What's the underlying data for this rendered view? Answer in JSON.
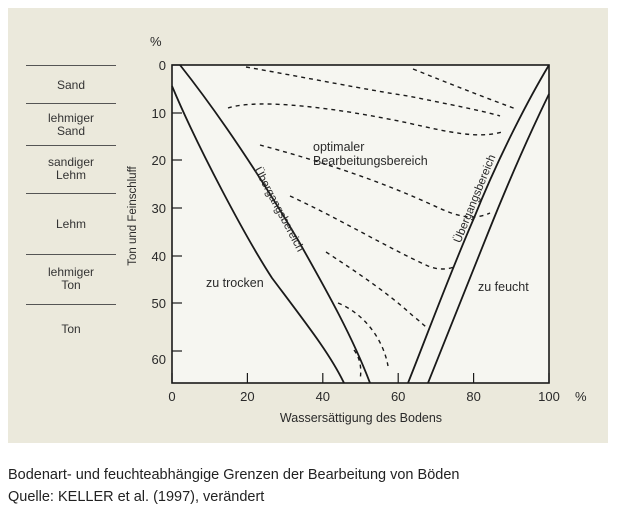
{
  "chart": {
    "type": "diagram",
    "xlabel": "Wassersättigung des Bodens",
    "ylabel": "Ton und Feinschluff",
    "x_unit": "%",
    "y_unit": "%",
    "x_ticks": [
      "0",
      "20",
      "40",
      "60",
      "80",
      "100"
    ],
    "y_ticks": [
      "0",
      "10",
      "20",
      "30",
      "40",
      "50",
      "60"
    ],
    "x_range": [
      0,
      100
    ],
    "y_range": [
      0,
      67
    ],
    "regions": {
      "dry": "zu trocken",
      "optimal": "optimaler\nBearbeitungsbereich",
      "wet": "zu feucht",
      "transition_left": "Übergangsbereich",
      "transition_right": "Übergangsbereich"
    }
  },
  "soil_classes": [
    "Sand",
    "lehmiger\nSand",
    "sandiger\nLehm",
    "Lehm",
    "lehmiger\nTon",
    "Ton"
  ],
  "caption": {
    "line1": "Bodenart- und feuchteabhängige Grenzen der Bearbeitung von Böden",
    "line2": "Quelle: KELLER et al. (1997), verändert"
  },
  "colors": {
    "background": "#ebe9dc",
    "plot_area": "#f6f6f1",
    "line": "#1a1a1a"
  }
}
